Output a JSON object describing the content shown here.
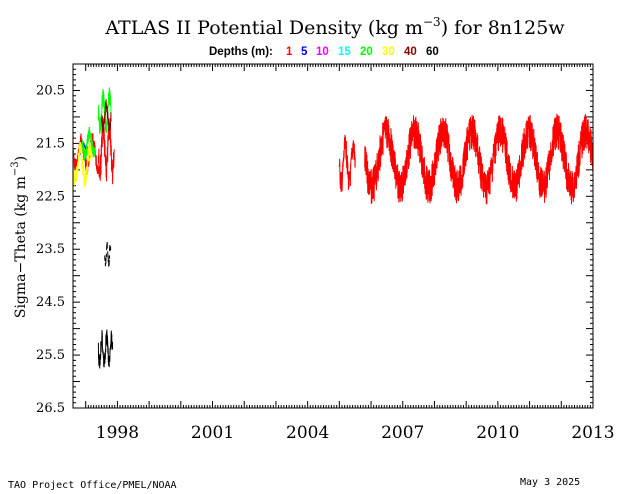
{
  "chart_data": {
    "type": "line",
    "title": "ATLAS II Potential Density (kg m",
    "title_exp": "−3",
    "title_tail": ") for 8n125w",
    "legend_label": "Depths (m):",
    "ylabel": "Sigma−Theta (kg m",
    "ylabel_exp": "−3",
    "ylabel_tail": ")",
    "yticks": [
      "20.5",
      "21.5",
      "22.5",
      "23.5",
      "24.5",
      "25.5",
      "26.5"
    ],
    "xticks": [
      "1998",
      "2001",
      "2004",
      "2007",
      "2010",
      "2013"
    ],
    "ylim": [
      26.5,
      20.0
    ],
    "xlim": [
      1996.6,
      2013.0
    ],
    "y_inverted": true,
    "grid": false,
    "series": [
      {
        "name": "1",
        "color": "#ff0000",
        "segments": [
          {
            "start": 1996.6,
            "end": 1997.4,
            "base": 21.7,
            "amp": 0.35,
            "period": 0.35
          },
          {
            "start": 1997.4,
            "end": 1997.9,
            "base": 21.6,
            "amp": 0.6,
            "period": 0.2
          },
          {
            "start": 2005.0,
            "end": 2005.5,
            "base": 21.9,
            "amp": 0.5,
            "period": 0.25
          },
          {
            "start": 2005.8,
            "end": 2013.0,
            "base": 21.8,
            "amp": 0.75,
            "period": 0.9
          }
        ]
      },
      {
        "name": "5",
        "color": "#0000ff",
        "segments": [
          {
            "start": 1996.8,
            "end": 1997.1,
            "base": 21.6,
            "amp": 0.1,
            "period": 0.2
          }
        ]
      },
      {
        "name": "10",
        "color": "#ff00ff",
        "segments": [
          {
            "start": 1996.9,
            "end": 1997.2,
            "base": 21.65,
            "amp": 0.1,
            "period": 0.2
          }
        ]
      },
      {
        "name": "15",
        "color": "#00ffff",
        "segments": [
          {
            "start": 1997.0,
            "end": 1997.3,
            "base": 21.6,
            "amp": 0.1,
            "period": 0.2
          }
        ]
      },
      {
        "name": "20",
        "color": "#00ff00",
        "segments": [
          {
            "start": 1996.9,
            "end": 1997.3,
            "base": 21.5,
            "amp": 0.3,
            "period": 0.3
          },
          {
            "start": 1997.4,
            "end": 1997.8,
            "base": 20.9,
            "amp": 0.4,
            "period": 0.2
          }
        ]
      },
      {
        "name": "30",
        "color": "#ffff00",
        "segments": [
          {
            "start": 1996.6,
            "end": 1997.2,
            "base": 21.9,
            "amp": 0.4,
            "period": 0.3
          }
        ]
      },
      {
        "name": "40",
        "color": "#8b0000",
        "segments": [
          {
            "start": 1997.5,
            "end": 1997.8,
            "base": 21.0,
            "amp": 0.3,
            "period": 0.2
          }
        ]
      },
      {
        "name": "60",
        "color": "#000000",
        "segments": [
          {
            "start": 1997.6,
            "end": 1997.8,
            "base": 23.6,
            "amp": 0.25,
            "period": 0.1,
            "dashed": true
          },
          {
            "start": 1997.4,
            "end": 1997.85,
            "base": 25.4,
            "amp": 0.35,
            "period": 0.15
          }
        ]
      }
    ]
  },
  "footer": {
    "left": "TAO Project Office/PMEL/NOAA",
    "right": "May  3 2025"
  }
}
